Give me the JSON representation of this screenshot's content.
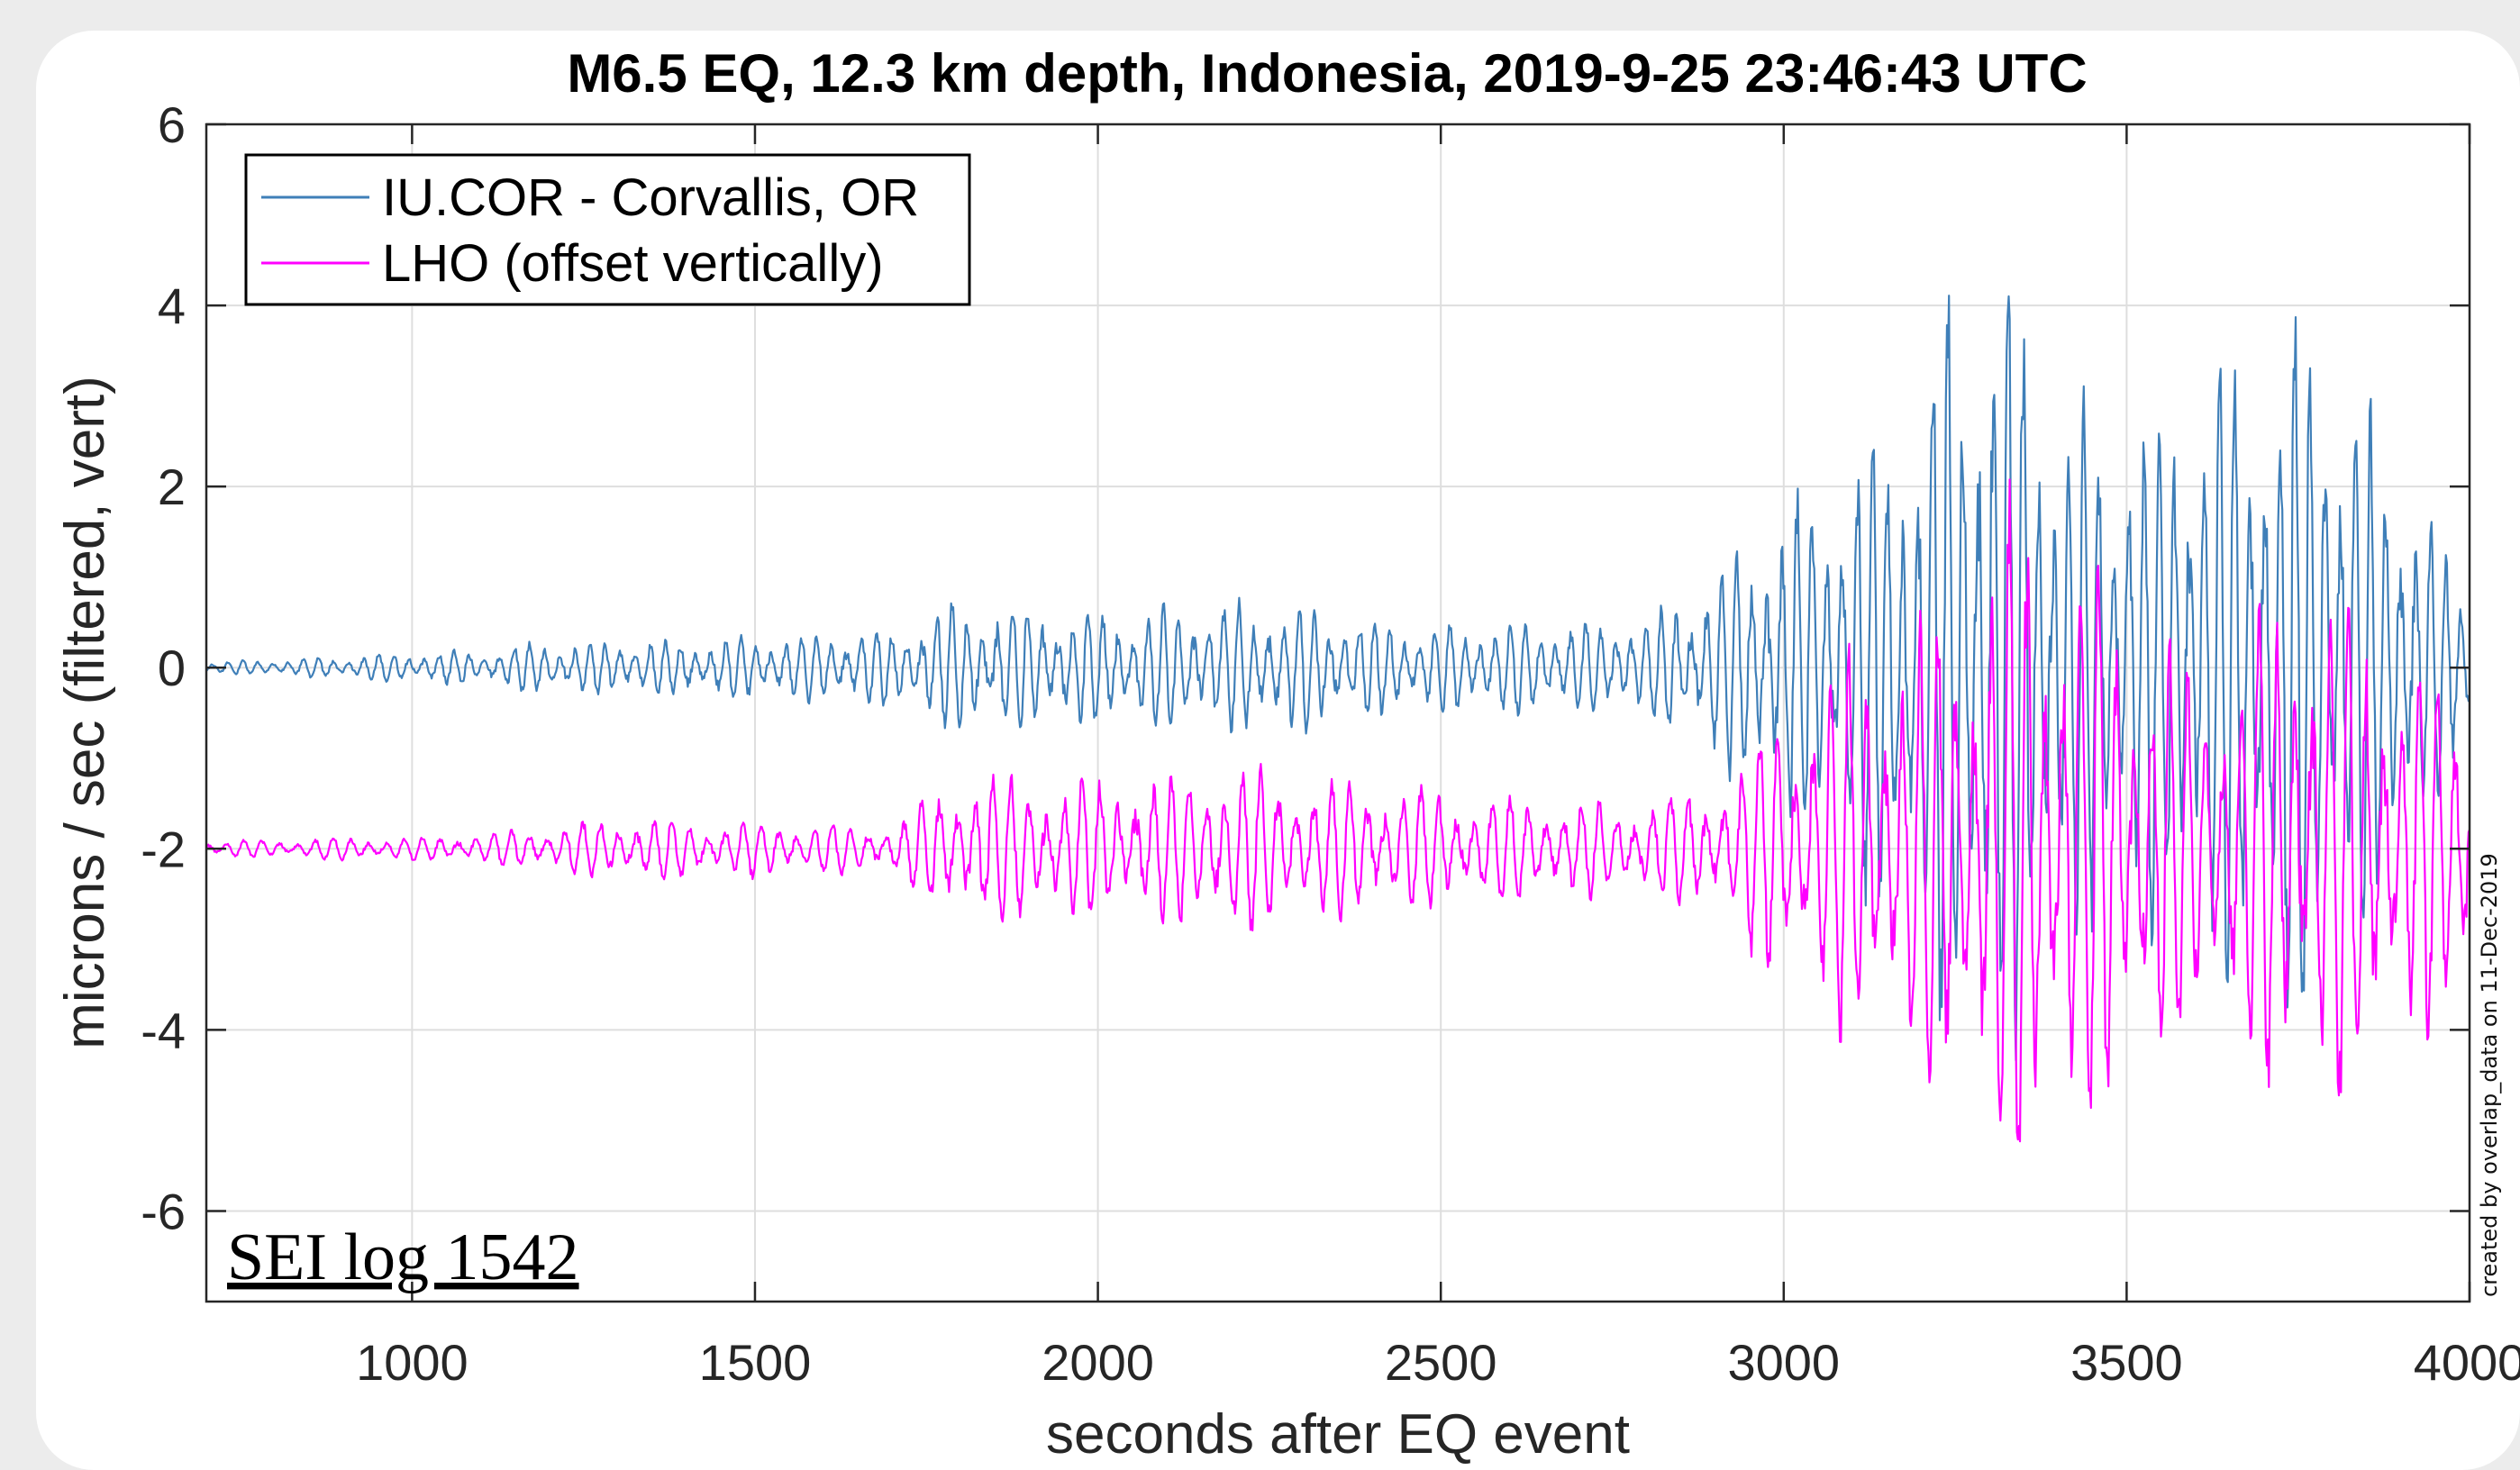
{
  "chart_data": {
    "type": "line",
    "title": "M6.5 EQ, 12.3 km depth, Indonesia, 2019-9-25 23:46:43 UTC",
    "xlabel": "seconds after EQ event",
    "ylabel": "microns / sec (filtered, vert)",
    "xlim": [
      700,
      4000
    ],
    "ylim": [
      -7,
      6
    ],
    "xticks": [
      "1000",
      "1500",
      "2000",
      "2500",
      "3000",
      "3500",
      "4000"
    ],
    "yticks": [
      "6",
      "4",
      "2",
      "0",
      "-2",
      "-4",
      "-6"
    ],
    "grid": true,
    "legend": {
      "position": "top-left"
    },
    "series": [
      {
        "name": "IU.COR - Corvallis, OR",
        "color": "#3f7fb8",
        "envelope": {
          "x": [
            700,
            800,
            900,
            1000,
            1100,
            1200,
            1300,
            1400,
            1500,
            1600,
            1700,
            1800,
            1900,
            2000,
            2100,
            2200,
            2300,
            2400,
            2500,
            2600,
            2700,
            2800,
            2900,
            3000,
            3100,
            3200,
            3250,
            3300,
            3350,
            3400,
            3500,
            3600,
            3700,
            3750,
            3800,
            3900,
            4000
          ],
          "amp": [
            0.08,
            0.1,
            0.15,
            0.2,
            0.22,
            0.35,
            0.35,
            0.35,
            0.4,
            0.45,
            0.5,
            0.9,
            0.8,
            0.75,
            0.8,
            0.85,
            0.8,
            0.65,
            0.55,
            0.6,
            0.55,
            0.65,
            1.2,
            2.0,
            2.8,
            3.6,
            5.2,
            5.8,
            4.6,
            3.6,
            3.3,
            3.6,
            4.3,
            4.8,
            4.2,
            2.6,
            0.9
          ]
        },
        "period": 22,
        "offset": 0
      },
      {
        "name": "LHO (offset vertically)",
        "color": "#ff00ff",
        "envelope": {
          "x": [
            700,
            800,
            900,
            1000,
            1100,
            1200,
            1300,
            1400,
            1500,
            1600,
            1700,
            1800,
            1900,
            2000,
            2100,
            2200,
            2300,
            2400,
            2500,
            2600,
            2700,
            2800,
            2900,
            3000,
            3100,
            3200,
            3300,
            3350,
            3400,
            3500,
            3600,
            3700,
            3750,
            3800,
            3900,
            4000
          ],
          "amp": [
            0.1,
            0.12,
            0.15,
            0.15,
            0.2,
            0.3,
            0.4,
            0.4,
            0.35,
            0.35,
            0.3,
            1.0,
            0.95,
            0.9,
            0.95,
            1.1,
            0.9,
            0.85,
            0.75,
            0.7,
            0.6,
            0.65,
            0.8,
            1.8,
            2.6,
            2.9,
            4.0,
            4.5,
            4.2,
            3.2,
            2.2,
            3.0,
            3.5,
            3.5,
            2.6,
            2.0
          ]
        },
        "period": 26,
        "offset": -2
      }
    ]
  },
  "annotations": {
    "credit": "created by overlap_data on 11-Dec-2019",
    "stamp": "SEI log 1542"
  }
}
